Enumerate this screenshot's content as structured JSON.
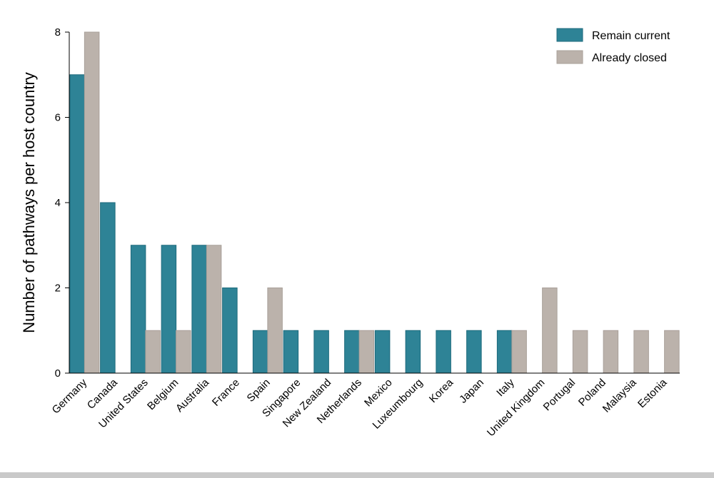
{
  "chart_data": {
    "type": "bar",
    "title": "",
    "xlabel": "",
    "ylabel": "Number of pathways per host country",
    "ylim": [
      0,
      8
    ],
    "yticks": [
      0,
      2,
      4,
      6,
      8
    ],
    "grid": false,
    "legend_position": "top-right",
    "categories": [
      "Germany",
      "Canada",
      "United States",
      "Belgium",
      "Australia",
      "France",
      "Spain",
      "Singapore",
      "New Zealand",
      "Netherlands",
      "Mexico",
      "Luxeumbourg",
      "Korea",
      "Japan",
      "Italy",
      "United Kingdom",
      "Portugal",
      "Poland",
      "Malaysia",
      "Estonia"
    ],
    "series": [
      {
        "name": "Remain current",
        "color": "#2e8396",
        "values": [
          7,
          4,
          3,
          3,
          3,
          2,
          1,
          1,
          1,
          1,
          1,
          1,
          1,
          1,
          1,
          0,
          0,
          0,
          0,
          0
        ]
      },
      {
        "name": "Already closed",
        "color": "#bbb2ab",
        "values": [
          8,
          0,
          1,
          1,
          3,
          0,
          2,
          0,
          0,
          1,
          0,
          0,
          0,
          0,
          1,
          2,
          1,
          1,
          1,
          1
        ]
      }
    ]
  }
}
